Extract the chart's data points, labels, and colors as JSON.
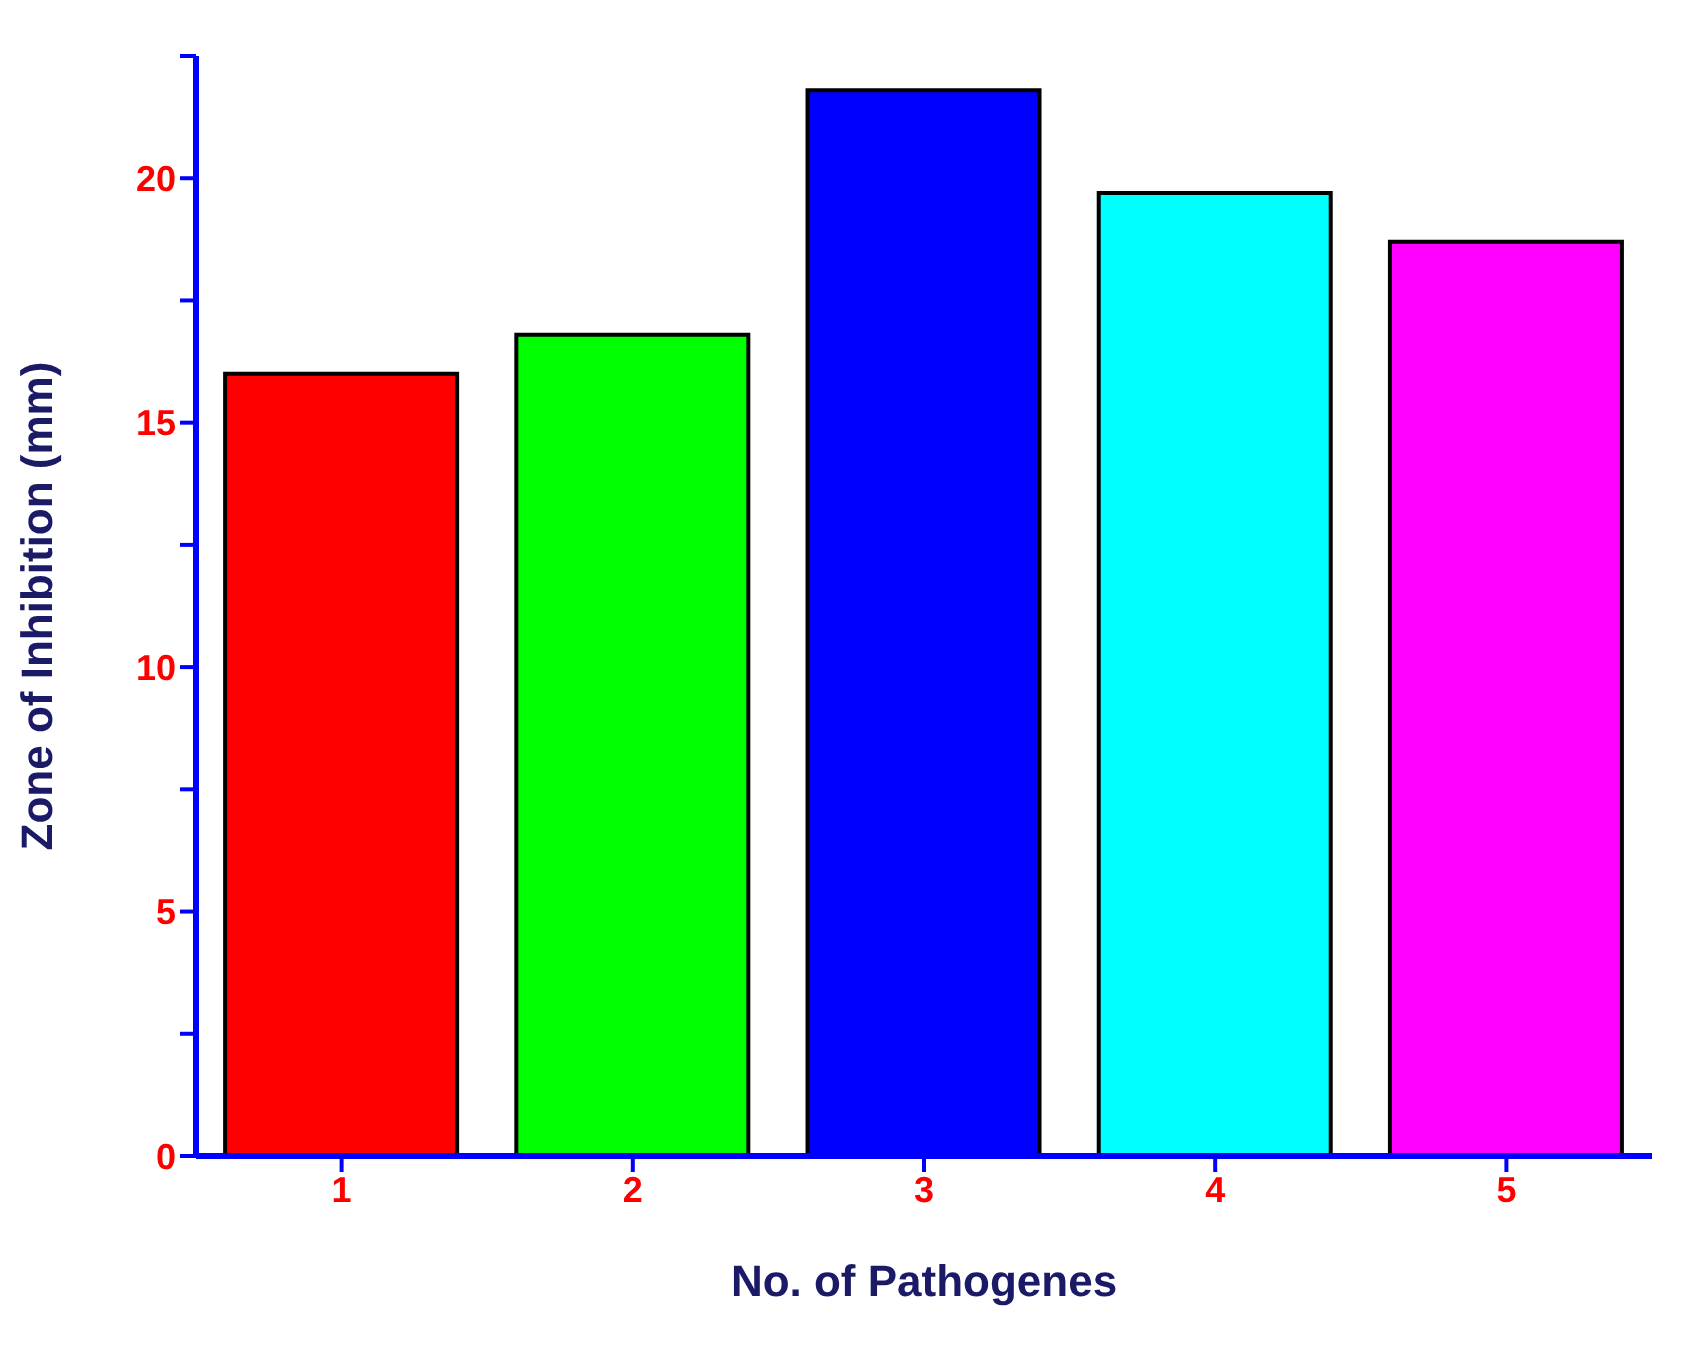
{
  "chart_data": {
    "type": "bar",
    "xlabel": "No. of Pathogenes",
    "ylabel": "Zone of Inhibition (mm)",
    "categories": [
      "1",
      "2",
      "3",
      "4",
      "5"
    ],
    "values": [
      16,
      16.8,
      21.8,
      19.7,
      18.7
    ],
    "colors": [
      "#ff0000",
      "#00ff00",
      "#0000ff",
      "#00ffff",
      "#ff00ff"
    ],
    "ylim": [
      0,
      22.5
    ],
    "yticks": [
      0,
      {
        "value": 2.5,
        "label": null
      },
      5,
      {
        "value": 7.5,
        "label": null
      },
      10,
      {
        "value": 12.5,
        "label": null
      },
      15,
      {
        "value": 17.5,
        "label": null
      },
      20,
      {
        "value": 22.5,
        "label": null
      }
    ],
    "grid": false,
    "legend": false
  }
}
